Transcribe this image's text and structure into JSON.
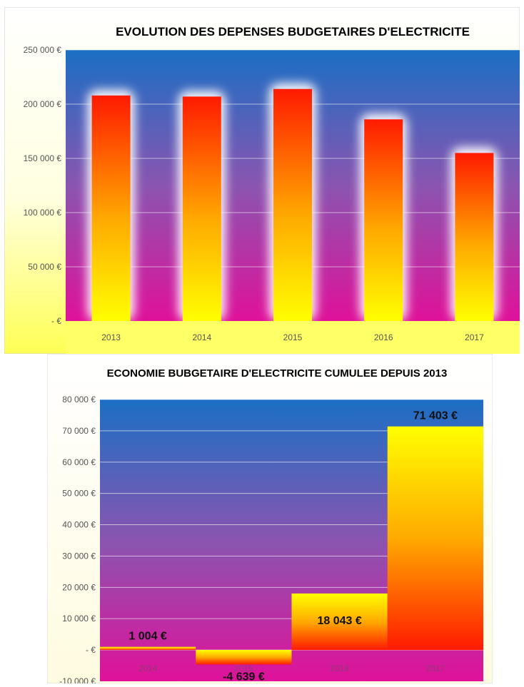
{
  "chart_data": [
    {
      "type": "bar",
      "title": "EVOLUTION DES DEPENSES BUDGETAIRES D'ELECTRICITE",
      "categories": [
        "2013",
        "2014",
        "2015",
        "2016",
        "2017"
      ],
      "values": [
        208000,
        207000,
        214000,
        186000,
        155000
      ],
      "ylim": [
        0,
        250000
      ],
      "yticks": [
        0,
        50000,
        100000,
        150000,
        200000,
        250000
      ],
      "ytick_labels": [
        "-   €",
        "50 000 €",
        "100 000 €",
        "150 000 €",
        "200 000 €",
        "250 000 €"
      ],
      "grid": true,
      "colors": {
        "plot_top": "#1a6fc4",
        "plot_bottom": "#e0119a",
        "frame": "#ffff66",
        "bar_top": "#ff1a00",
        "bar_bottom": "#ffff00"
      }
    },
    {
      "type": "bar",
      "title": "ECONOMIE BUBGETAIRE D'ELECTRICITE CUMULEE DEPUIS 2013",
      "categories": [
        "2014",
        "2015",
        "2016",
        "2017"
      ],
      "values": [
        1004,
        -4639,
        18043,
        71403
      ],
      "data_labels": [
        "1 004 €",
        "-4 639 €",
        "18 043 €",
        "71 403 €"
      ],
      "ylim": [
        -10000,
        80000
      ],
      "yticks": [
        -10000,
        0,
        10000,
        20000,
        30000,
        40000,
        50000,
        60000,
        70000,
        80000
      ],
      "ytick_labels": [
        "-10 000 €",
        "-   €",
        "10 000 €",
        "20 000 €",
        "30 000 €",
        "40 000 €",
        "50 000 €",
        "60 000 €",
        "70 000 €",
        "80 000 €"
      ],
      "grid": true,
      "colors": {
        "plot_top": "#1a6fc4",
        "plot_bottom": "#e0119a",
        "frame": "#fffde8",
        "bar_top": "#ffff00",
        "bar_bottom": "#ff1a00"
      }
    }
  ]
}
